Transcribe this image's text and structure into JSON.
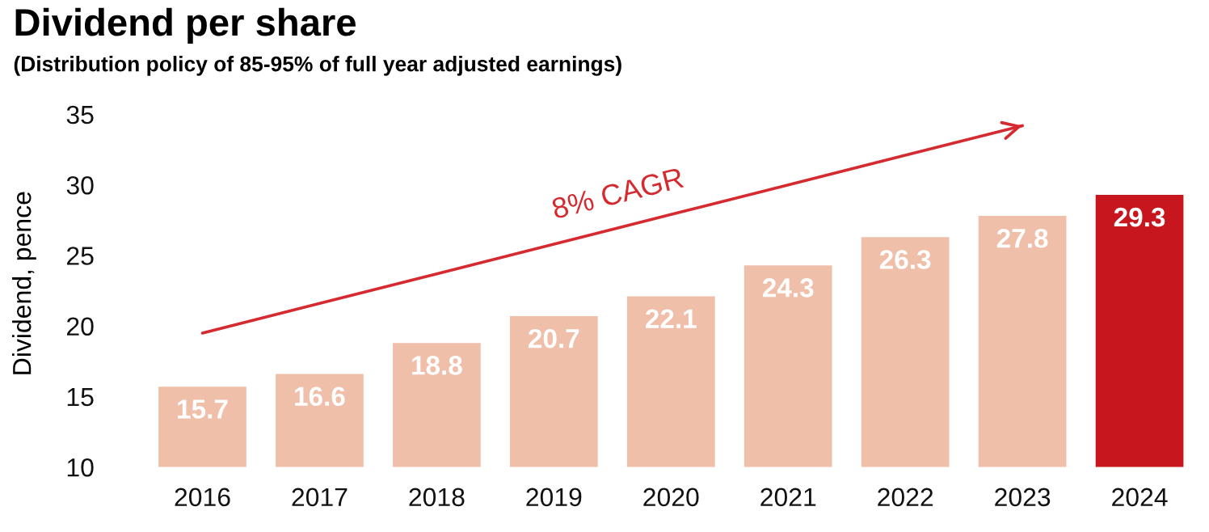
{
  "chart_data": {
    "type": "bar",
    "title": "Dividend per share",
    "subtitle": "(Distribution policy of 85-95% of full year adjusted earnings)",
    "ylabel": "Dividend, pence",
    "categories": [
      "2016",
      "2017",
      "2018",
      "2019",
      "2020",
      "2021",
      "2022",
      "2023",
      "2024"
    ],
    "values": [
      15.7,
      16.6,
      18.8,
      20.7,
      22.1,
      24.3,
      26.3,
      27.8,
      29.3
    ],
    "colors": [
      "#f0bfaa",
      "#f0bfaa",
      "#f0bfaa",
      "#f0bfaa",
      "#f0bfaa",
      "#f0bfaa",
      "#f0bfaa",
      "#f0bfaa",
      "#c8161e"
    ],
    "ylim": [
      10,
      35
    ],
    "yticks": [
      10,
      15,
      20,
      25,
      30,
      35
    ],
    "grid": false,
    "data_labels": true,
    "series": [
      {
        "type": "line",
        "values": [
          19.5,
          21.6,
          23.7,
          25.8,
          27.9,
          30.0,
          32.1,
          34.2,
          null
        ],
        "value_labels": [
          null,
          null,
          null,
          null,
          null,
          null,
          null,
          null,
          null
        ],
        "color": "#d42a30"
      }
    ],
    "annotations": [
      "8% CAGR"
    ]
  }
}
